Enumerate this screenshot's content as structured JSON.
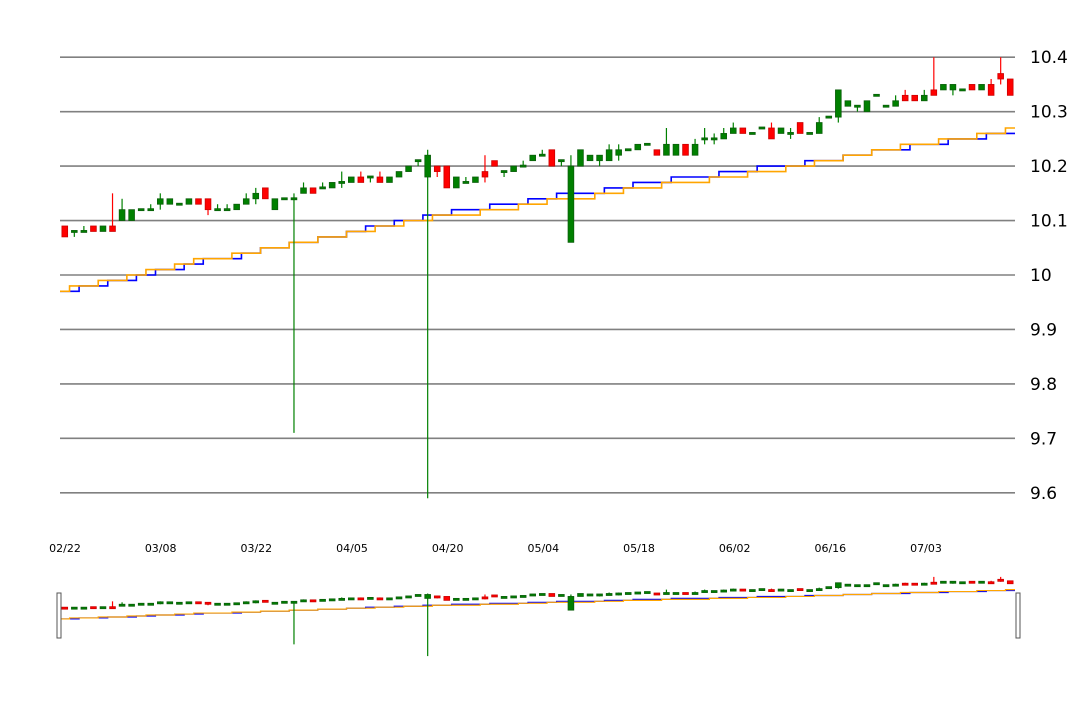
{
  "chart_data": {
    "type": "candlestick",
    "title": "",
    "xlabel": "",
    "ylabel": "",
    "y_axis_position": "right",
    "ylim": [
      9.55,
      10.45
    ],
    "yticks": [
      "9.6",
      "9.7",
      "9.8",
      "9.9",
      "10",
      "10.1",
      "10.2",
      "10.3",
      "10.4"
    ],
    "grid": true,
    "x_labels": [
      "02/22",
      "03/08",
      "03/22",
      "04/05",
      "04/20",
      "05/04",
      "05/18",
      "06/02",
      "06/16",
      "07/03"
    ],
    "colors": {
      "up": "#008000",
      "down": "#ff0000",
      "ma_fast": "#0000ff",
      "ma_slow": "#ffa500",
      "grid": "#808080"
    },
    "navigator": true,
    "candles": [
      [
        10.09,
        10.09,
        10.07,
        10.07
      ],
      [
        10.08,
        10.08,
        10.07,
        10.08
      ],
      [
        10.08,
        10.09,
        10.08,
        10.08
      ],
      [
        10.09,
        10.09,
        10.08,
        10.08
      ],
      [
        10.08,
        10.09,
        10.08,
        10.09
      ],
      [
        10.09,
        10.15,
        10.08,
        10.08
      ],
      [
        10.1,
        10.14,
        10.1,
        10.12
      ],
      [
        10.1,
        10.12,
        10.1,
        10.12
      ],
      [
        10.12,
        10.12,
        10.12,
        10.12
      ],
      [
        10.12,
        10.13,
        10.12,
        10.12
      ],
      [
        10.13,
        10.15,
        10.12,
        10.14
      ],
      [
        10.13,
        10.14,
        10.13,
        10.14
      ],
      [
        10.13,
        10.13,
        10.13,
        10.13
      ],
      [
        10.13,
        10.14,
        10.13,
        10.14
      ],
      [
        10.14,
        10.14,
        10.13,
        10.13
      ],
      [
        10.14,
        10.14,
        10.11,
        10.12
      ],
      [
        10.12,
        10.13,
        10.12,
        10.12
      ],
      [
        10.12,
        10.13,
        10.12,
        10.12
      ],
      [
        10.12,
        10.13,
        10.12,
        10.13
      ],
      [
        10.13,
        10.15,
        10.13,
        10.14
      ],
      [
        10.14,
        10.16,
        10.13,
        10.15
      ],
      [
        10.16,
        10.16,
        10.14,
        10.14
      ],
      [
        10.12,
        10.14,
        10.12,
        10.14
      ],
      [
        10.14,
        10.14,
        10.14,
        10.14
      ],
      [
        10.14,
        10.15,
        9.71,
        10.14
      ],
      [
        10.15,
        10.17,
        10.15,
        10.16
      ],
      [
        10.16,
        10.16,
        10.15,
        10.15
      ],
      [
        10.16,
        10.17,
        10.16,
        10.16
      ],
      [
        10.16,
        10.17,
        10.16,
        10.17
      ],
      [
        10.17,
        10.19,
        10.16,
        10.17
      ],
      [
        10.17,
        10.18,
        10.17,
        10.18
      ],
      [
        10.18,
        10.19,
        10.17,
        10.17
      ],
      [
        10.18,
        10.18,
        10.17,
        10.18
      ],
      [
        10.18,
        10.19,
        10.17,
        10.17
      ],
      [
        10.17,
        10.18,
        10.17,
        10.18
      ],
      [
        10.18,
        10.19,
        10.18,
        10.19
      ],
      [
        10.19,
        10.2,
        10.19,
        10.2
      ],
      [
        10.21,
        10.21,
        10.2,
        10.21
      ],
      [
        10.18,
        10.23,
        9.59,
        10.22
      ],
      [
        10.2,
        10.2,
        10.18,
        10.19
      ],
      [
        10.2,
        10.2,
        10.16,
        10.16
      ],
      [
        10.16,
        10.18,
        10.16,
        10.18
      ],
      [
        10.17,
        10.18,
        10.17,
        10.17
      ],
      [
        10.17,
        10.18,
        10.17,
        10.18
      ],
      [
        10.19,
        10.22,
        10.17,
        10.18
      ],
      [
        10.21,
        10.21,
        10.2,
        10.2
      ],
      [
        10.19,
        10.19,
        10.18,
        10.19
      ],
      [
        10.19,
        10.2,
        10.19,
        10.2
      ],
      [
        10.2,
        10.21,
        10.2,
        10.2
      ],
      [
        10.21,
        10.22,
        10.21,
        10.22
      ],
      [
        10.22,
        10.23,
        10.22,
        10.22
      ],
      [
        10.23,
        10.23,
        10.2,
        10.2
      ],
      [
        10.21,
        10.21,
        10.2,
        10.21
      ],
      [
        10.06,
        10.22,
        10.06,
        10.2
      ],
      [
        10.2,
        10.23,
        10.2,
        10.23
      ],
      [
        10.21,
        10.22,
        10.21,
        10.22
      ],
      [
        10.21,
        10.22,
        10.2,
        10.22
      ],
      [
        10.21,
        10.24,
        10.21,
        10.23
      ],
      [
        10.22,
        10.24,
        10.21,
        10.23
      ],
      [
        10.23,
        10.23,
        10.23,
        10.23
      ],
      [
        10.23,
        10.24,
        10.23,
        10.24
      ],
      [
        10.24,
        10.24,
        10.24,
        10.24
      ],
      [
        10.23,
        10.23,
        10.22,
        10.22
      ],
      [
        10.22,
        10.27,
        10.22,
        10.24
      ],
      [
        10.22,
        10.24,
        10.22,
        10.24
      ],
      [
        10.24,
        10.24,
        10.22,
        10.22
      ],
      [
        10.22,
        10.25,
        10.22,
        10.24
      ],
      [
        10.25,
        10.27,
        10.24,
        10.25
      ],
      [
        10.25,
        10.26,
        10.24,
        10.25
      ],
      [
        10.25,
        10.27,
        10.25,
        10.26
      ],
      [
        10.26,
        10.28,
        10.26,
        10.27
      ],
      [
        10.27,
        10.27,
        10.26,
        10.26
      ],
      [
        10.26,
        10.26,
        10.26,
        10.26
      ],
      [
        10.27,
        10.27,
        10.27,
        10.27
      ],
      [
        10.27,
        10.28,
        10.25,
        10.25
      ],
      [
        10.26,
        10.27,
        10.26,
        10.27
      ],
      [
        10.26,
        10.27,
        10.25,
        10.26
      ],
      [
        10.28,
        10.28,
        10.26,
        10.26
      ],
      [
        10.26,
        10.26,
        10.26,
        10.26
      ],
      [
        10.26,
        10.29,
        10.26,
        10.28
      ],
      [
        10.29,
        10.29,
        10.29,
        10.29
      ],
      [
        10.29,
        10.34,
        10.28,
        10.34
      ],
      [
        10.31,
        10.32,
        10.31,
        10.32
      ],
      [
        10.31,
        10.31,
        10.3,
        10.31
      ],
      [
        10.3,
        10.32,
        10.3,
        10.32
      ],
      [
        10.33,
        10.33,
        10.33,
        10.33
      ],
      [
        10.31,
        10.31,
        10.31,
        10.31
      ],
      [
        10.31,
        10.33,
        10.31,
        10.32
      ],
      [
        10.33,
        10.34,
        10.32,
        10.32
      ],
      [
        10.33,
        10.33,
        10.32,
        10.32
      ],
      [
        10.32,
        10.34,
        10.32,
        10.33
      ],
      [
        10.34,
        10.4,
        10.33,
        10.33
      ],
      [
        10.34,
        10.35,
        10.34,
        10.35
      ],
      [
        10.34,
        10.35,
        10.33,
        10.35
      ],
      [
        10.34,
        10.34,
        10.34,
        10.34
      ],
      [
        10.35,
        10.35,
        10.34,
        10.34
      ],
      [
        10.34,
        10.35,
        10.34,
        10.35
      ],
      [
        10.35,
        10.36,
        10.33,
        10.33
      ],
      [
        10.37,
        10.4,
        10.35,
        10.36
      ],
      [
        10.36,
        10.36,
        10.33,
        10.33
      ]
    ],
    "ma_fast": [
      9.97,
      9.97,
      9.98,
      9.98,
      9.98,
      9.99,
      9.99,
      9.99,
      10.0,
      10.0,
      10.01,
      10.01,
      10.01,
      10.02,
      10.02,
      10.03,
      10.03,
      10.03,
      10.03,
      10.04,
      10.04,
      10.05,
      10.05,
      10.05,
      10.06,
      10.06,
      10.06,
      10.07,
      10.07,
      10.07,
      10.08,
      10.08,
      10.09,
      10.09,
      10.09,
      10.1,
      10.1,
      10.1,
      10.11,
      10.11,
      10.11,
      10.12,
      10.12,
      10.12,
      10.12,
      10.13,
      10.13,
      10.13,
      10.13,
      10.14,
      10.14,
      10.14,
      10.15,
      10.15,
      10.15,
      10.15,
      10.15,
      10.16,
      10.16,
      10.16,
      10.17,
      10.17,
      10.17,
      10.17,
      10.18,
      10.18,
      10.18,
      10.18,
      10.18,
      10.19,
      10.19,
      10.19,
      10.19,
      10.2,
      10.2,
      10.2,
      10.2,
      10.2,
      10.21,
      10.21,
      10.21,
      10.21,
      10.22,
      10.22,
      10.22,
      10.23,
      10.23,
      10.23,
      10.23,
      10.24,
      10.24,
      10.24,
      10.24,
      10.25,
      10.25,
      10.25,
      10.25,
      10.26,
      10.26,
      10.26
    ],
    "ma_slow": [
      9.97,
      9.98,
      9.98,
      9.98,
      9.99,
      9.99,
      9.99,
      10.0,
      10.0,
      10.01,
      10.01,
      10.01,
      10.02,
      10.02,
      10.03,
      10.03,
      10.03,
      10.03,
      10.04,
      10.04,
      10.04,
      10.05,
      10.05,
      10.05,
      10.06,
      10.06,
      10.06,
      10.07,
      10.07,
      10.07,
      10.08,
      10.08,
      10.08,
      10.09,
      10.09,
      10.09,
      10.1,
      10.1,
      10.1,
      10.11,
      10.11,
      10.11,
      10.11,
      10.11,
      10.12,
      10.12,
      10.12,
      10.12,
      10.13,
      10.13,
      10.13,
      10.14,
      10.14,
      10.14,
      10.14,
      10.14,
      10.15,
      10.15,
      10.15,
      10.16,
      10.16,
      10.16,
      10.16,
      10.17,
      10.17,
      10.17,
      10.17,
      10.17,
      10.18,
      10.18,
      10.18,
      10.18,
      10.19,
      10.19,
      10.19,
      10.19,
      10.2,
      10.2,
      10.2,
      10.21,
      10.21,
      10.21,
      10.22,
      10.22,
      10.22,
      10.23,
      10.23,
      10.23,
      10.24,
      10.24,
      10.24,
      10.24,
      10.25,
      10.25,
      10.25,
      10.25,
      10.26,
      10.26,
      10.26,
      10.27
    ]
  }
}
